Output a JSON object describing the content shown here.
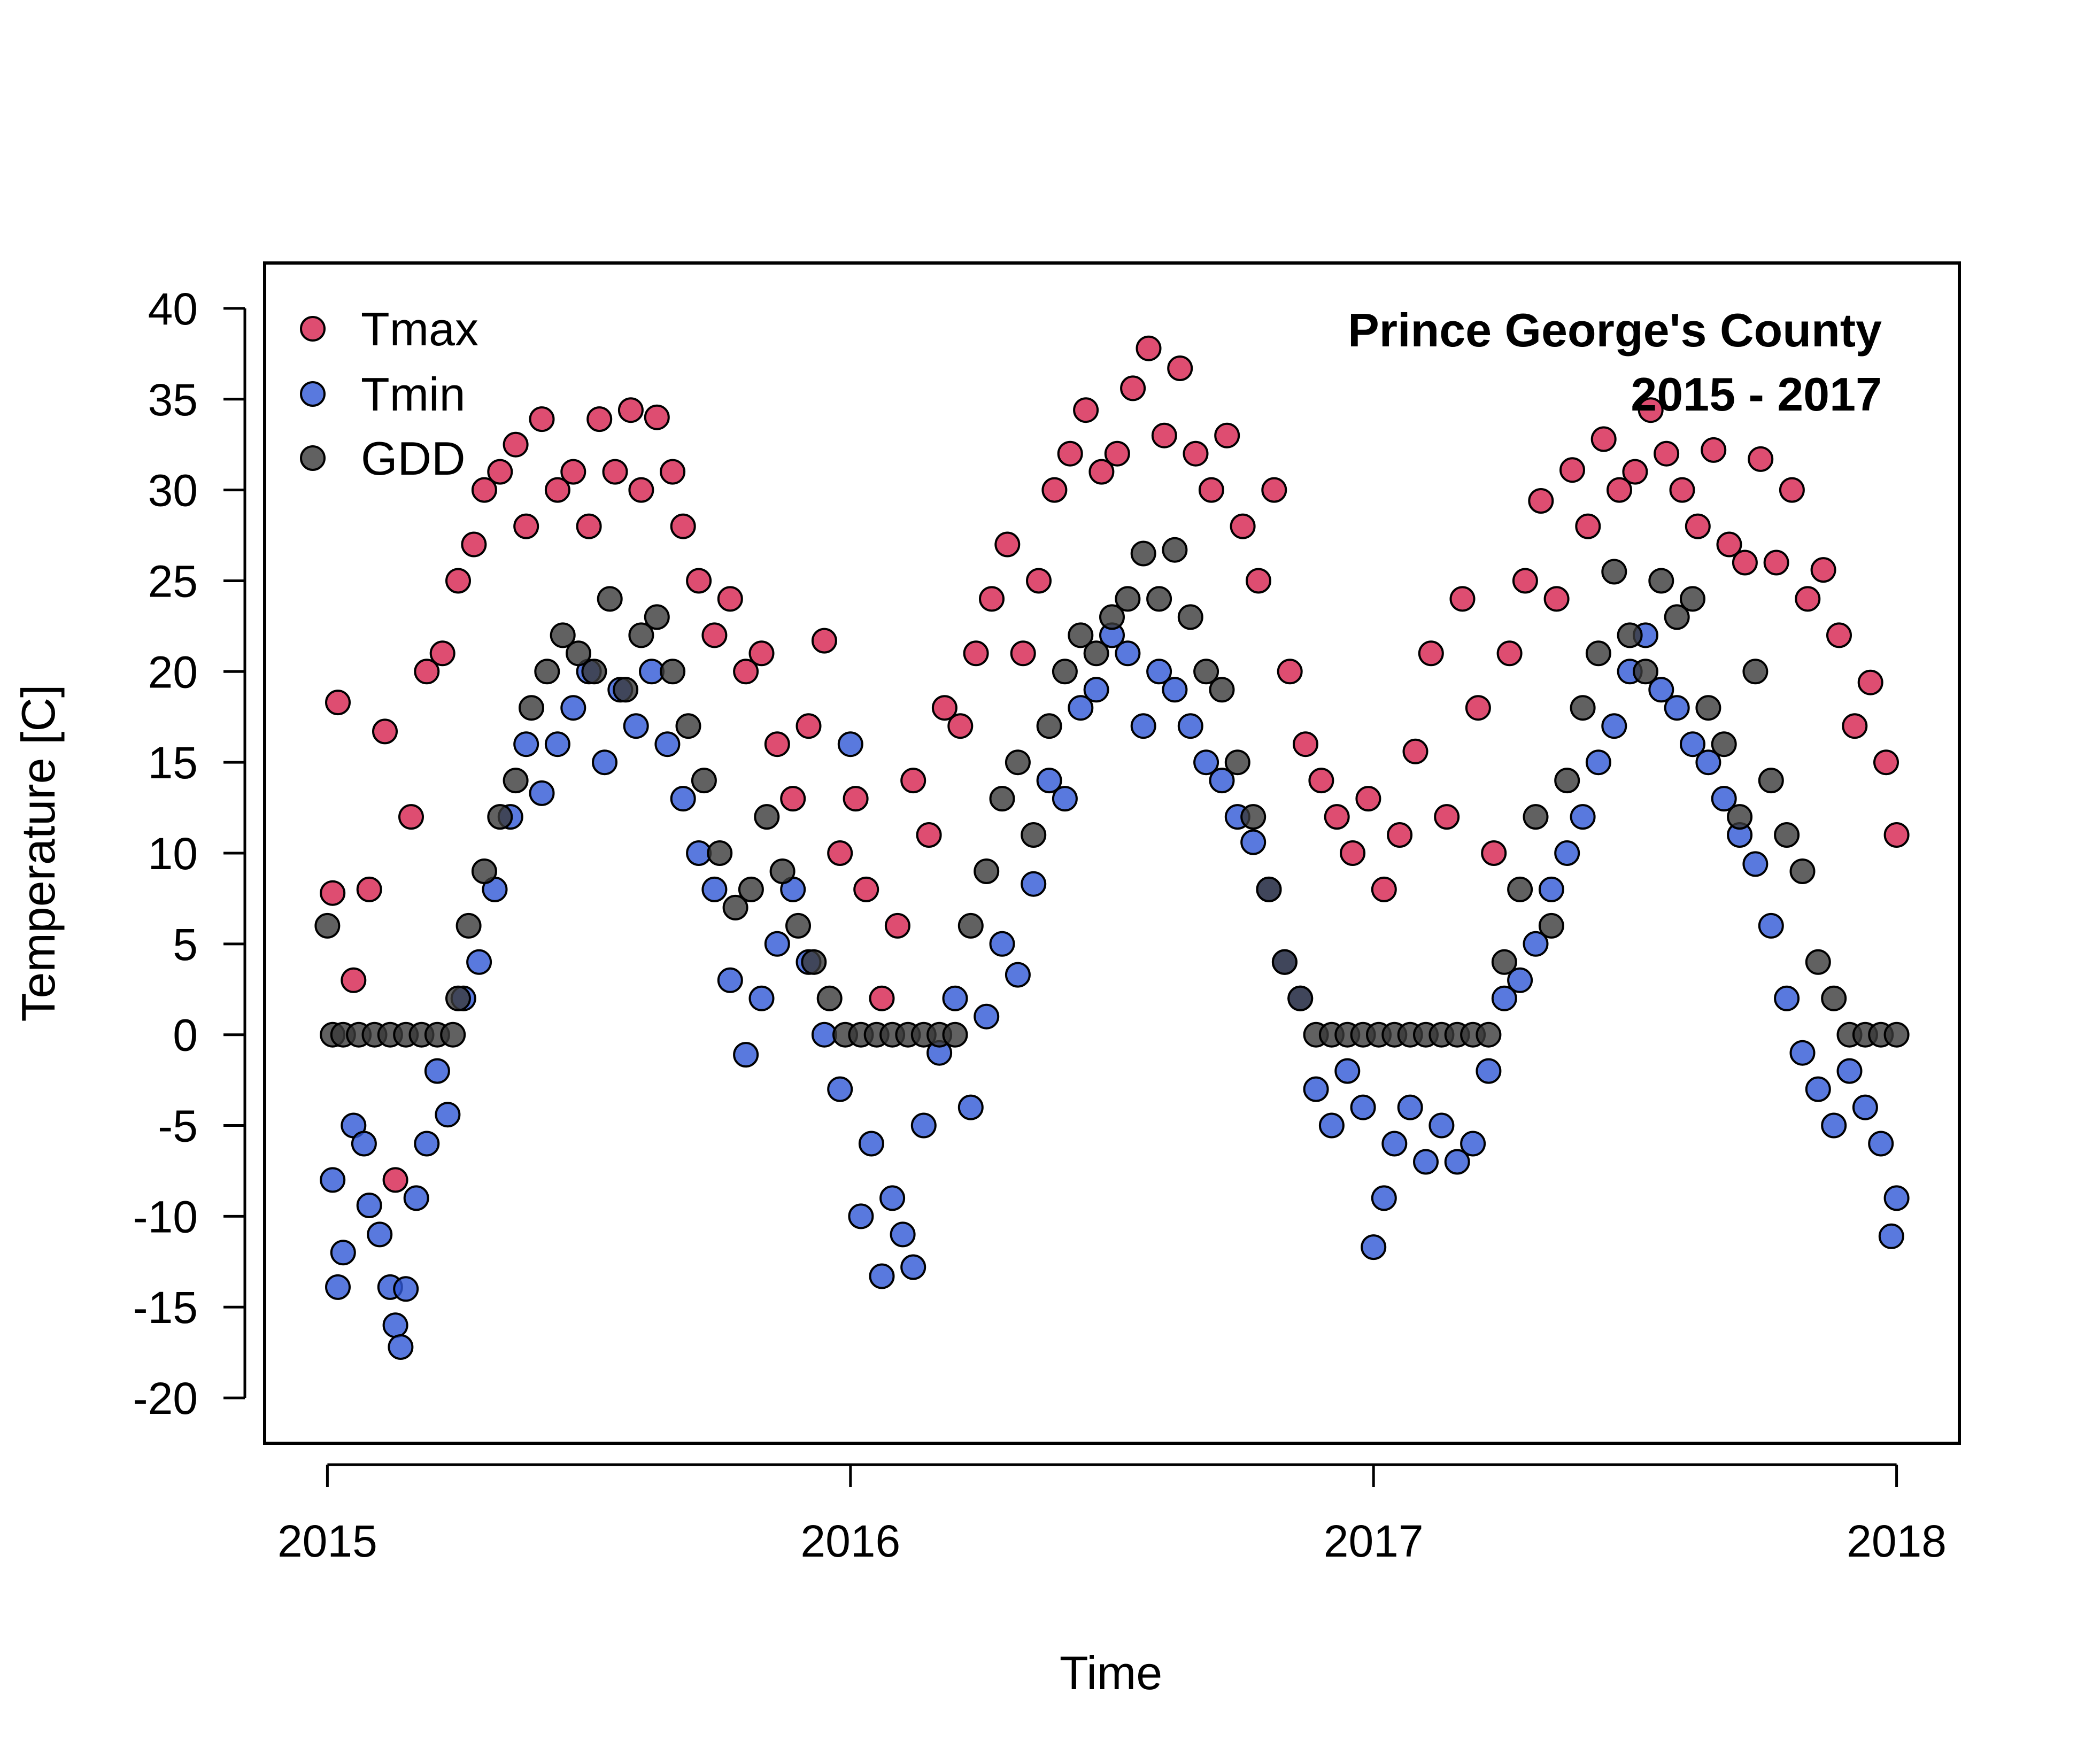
{
  "chart_data": {
    "type": "scatter",
    "title": "",
    "xlabel": "Time",
    "ylabel": "Temperature [C]",
    "xlim": [
      2014.88,
      2018.12
    ],
    "ylim": [
      -22.5,
      42.5
    ],
    "x_ticks": [
      2015,
      2016,
      2017,
      2018
    ],
    "x_tick_labels": [
      "2015",
      "2016",
      "2017",
      "2018"
    ],
    "y_ticks": [
      -20,
      -15,
      -10,
      -5,
      0,
      5,
      10,
      15,
      20,
      25,
      30,
      35,
      40
    ],
    "y_tick_labels": [
      "-20",
      "-15",
      "-10",
      "-5",
      "0",
      "5",
      "10",
      "15",
      "20",
      "25",
      "30",
      "35",
      "40"
    ],
    "grid": false,
    "legend_position": "top-left",
    "annotation": {
      "line1": "Prince George's County",
      "line2": "2015 - 2017",
      "position": "top-right"
    },
    "series": [
      {
        "name": "Tmax",
        "color": "#D6204E",
        "x": [
          2015.01,
          2015.02,
          2015.05,
          2015.08,
          2015.11,
          2015.13,
          2015.16,
          2015.19,
          2015.22,
          2015.25,
          2015.28,
          2015.3,
          2015.33,
          2015.36,
          2015.38,
          2015.41,
          2015.44,
          2015.47,
          2015.5,
          2015.52,
          2015.55,
          2015.58,
          2015.6,
          2015.63,
          2015.66,
          2015.68,
          2015.71,
          2015.74,
          2015.77,
          2015.8,
          2015.83,
          2015.86,
          2015.89,
          2015.92,
          2015.95,
          2015.98,
          2016.01,
          2016.03,
          2016.06,
          2016.09,
          2016.12,
          2016.15,
          2016.18,
          2016.21,
          2016.24,
          2016.27,
          2016.3,
          2016.33,
          2016.36,
          2016.39,
          2016.42,
          2016.45,
          2016.48,
          2016.51,
          2016.54,
          2016.57,
          2016.6,
          2016.63,
          2016.66,
          2016.69,
          2016.72,
          2016.75,
          2016.78,
          2016.81,
          2016.84,
          2016.87,
          2016.9,
          2016.93,
          2016.96,
          2016.99,
          2017.02,
          2017.05,
          2017.08,
          2017.11,
          2017.14,
          2017.17,
          2017.2,
          2017.23,
          2017.26,
          2017.29,
          2017.32,
          2017.35,
          2017.38,
          2017.41,
          2017.44,
          2017.47,
          2017.5,
          2017.53,
          2017.56,
          2017.59,
          2017.62,
          2017.65,
          2017.68,
          2017.71,
          2017.74,
          2017.77,
          2017.8,
          2017.83,
          2017.86,
          2017.89,
          2017.92,
          2017.95,
          2017.98,
          2018.0
        ],
        "y": [
          7.8,
          18.3,
          3.0,
          8.0,
          16.7,
          -8.0,
          12.0,
          20.0,
          21.0,
          25.0,
          27.0,
          30.0,
          31.0,
          32.5,
          28.0,
          33.9,
          30.0,
          31.0,
          28.0,
          33.9,
          31.0,
          34.4,
          30.0,
          34.0,
          31.0,
          28.0,
          25.0,
          22.0,
          24.0,
          20.0,
          21.0,
          16.0,
          13.0,
          17.0,
          21.7,
          10.0,
          13.0,
          8.0,
          2.0,
          6.0,
          14.0,
          11.0,
          18.0,
          17.0,
          21.0,
          24.0,
          27.0,
          21.0,
          25.0,
          30.0,
          32.0,
          34.4,
          31.0,
          32.0,
          35.6,
          37.8,
          33.0,
          36.7,
          32.0,
          30.0,
          33.0,
          28.0,
          25.0,
          30.0,
          20.0,
          16.0,
          14.0,
          12.0,
          10.0,
          13.0,
          8.0,
          11.0,
          15.6,
          21.0,
          12.0,
          24.0,
          18.0,
          10.0,
          21.0,
          25.0,
          29.4,
          24.0,
          31.1,
          28.0,
          32.8,
          30.0,
          31.0,
          34.4,
          32.0,
          30.0,
          28.0,
          32.2,
          27.0,
          26.0,
          31.7,
          26.0,
          30.0,
          24.0,
          25.6,
          22.0,
          17.0,
          19.4,
          15.0,
          11.0
        ]
      },
      {
        "name": "Tmin",
        "color": "#2F57D6",
        "x": [
          2015.01,
          2015.02,
          2015.03,
          2015.05,
          2015.07,
          2015.08,
          2015.1,
          2015.12,
          2015.13,
          2015.14,
          2015.15,
          2015.17,
          2015.19,
          2015.21,
          2015.23,
          2015.26,
          2015.29,
          2015.32,
          2015.35,
          2015.38,
          2015.41,
          2015.44,
          2015.47,
          2015.5,
          2015.53,
          2015.56,
          2015.59,
          2015.62,
          2015.65,
          2015.68,
          2015.71,
          2015.74,
          2015.77,
          2015.8,
          2015.83,
          2015.86,
          2015.89,
          2015.92,
          2015.95,
          2015.98,
          2016.0,
          2016.02,
          2016.04,
          2016.06,
          2016.08,
          2016.1,
          2016.12,
          2016.14,
          2016.17,
          2016.2,
          2016.23,
          2016.26,
          2016.29,
          2016.32,
          2016.35,
          2016.38,
          2016.41,
          2016.44,
          2016.47,
          2016.5,
          2016.53,
          2016.56,
          2016.59,
          2016.62,
          2016.65,
          2016.68,
          2016.71,
          2016.74,
          2016.77,
          2016.8,
          2016.83,
          2016.86,
          2016.89,
          2016.92,
          2016.95,
          2016.98,
          2017.0,
          2017.02,
          2017.04,
          2017.07,
          2017.1,
          2017.13,
          2017.16,
          2017.19,
          2017.22,
          2017.25,
          2017.28,
          2017.31,
          2017.34,
          2017.37,
          2017.4,
          2017.43,
          2017.46,
          2017.49,
          2017.52,
          2017.55,
          2017.58,
          2017.61,
          2017.64,
          2017.67,
          2017.7,
          2017.73,
          2017.76,
          2017.79,
          2017.82,
          2017.85,
          2017.88,
          2017.91,
          2017.94,
          2017.97,
          2017.99,
          2018.0
        ],
        "y": [
          -8.0,
          -13.9,
          -12.0,
          -5.0,
          -6.0,
          -9.4,
          -11.0,
          -13.9,
          -16.0,
          -17.2,
          -14.0,
          -9.0,
          -6.0,
          -2.0,
          -4.4,
          2.0,
          4.0,
          8.0,
          12.0,
          16.0,
          13.3,
          16.0,
          18.0,
          20.0,
          15.0,
          19.0,
          17.0,
          20.0,
          16.0,
          13.0,
          10.0,
          8.0,
          3.0,
          -1.1,
          2.0,
          5.0,
          8.0,
          4.0,
          0.0,
          -3.0,
          16.0,
          -10.0,
          -6.0,
          -13.3,
          -9.0,
          -11.0,
          -12.8,
          -5.0,
          -1.0,
          2.0,
          -4.0,
          1.0,
          5.0,
          3.3,
          8.3,
          14.0,
          13.0,
          18.0,
          19.0,
          22.0,
          21.0,
          17.0,
          20.0,
          19.0,
          17.0,
          15.0,
          14.0,
          12.0,
          10.6,
          8.0,
          4.0,
          2.0,
          -3.0,
          -5.0,
          -2.0,
          -4.0,
          -11.7,
          -9.0,
          -6.0,
          -4.0,
          -7.0,
          -5.0,
          -7.0,
          -6.0,
          -2.0,
          2.0,
          3.0,
          5.0,
          8.0,
          10.0,
          12.0,
          15.0,
          17.0,
          20.0,
          22.0,
          19.0,
          18.0,
          16.0,
          15.0,
          13.0,
          11.0,
          9.4,
          6.0,
          2.0,
          -1.0,
          -3.0,
          -5.0,
          -2.0,
          -4.0,
          -6.0,
          -11.1,
          -9.0
        ]
      },
      {
        "name": "GDD",
        "color": "#3A3A3A",
        "x": [
          2015.0,
          2015.01,
          2015.03,
          2015.06,
          2015.09,
          2015.12,
          2015.15,
          2015.18,
          2015.21,
          2015.24,
          2015.25,
          2015.27,
          2015.3,
          2015.33,
          2015.36,
          2015.39,
          2015.42,
          2015.45,
          2015.48,
          2015.51,
          2015.54,
          2015.57,
          2015.6,
          2015.63,
          2015.66,
          2015.69,
          2015.72,
          2015.75,
          2015.78,
          2015.81,
          2015.84,
          2015.87,
          2015.9,
          2015.93,
          2015.96,
          2015.99,
          2016.02,
          2016.05,
          2016.08,
          2016.11,
          2016.14,
          2016.17,
          2016.2,
          2016.23,
          2016.26,
          2016.29,
          2016.32,
          2016.35,
          2016.38,
          2016.41,
          2016.44,
          2016.47,
          2016.5,
          2016.53,
          2016.56,
          2016.59,
          2016.62,
          2016.65,
          2016.68,
          2016.71,
          2016.74,
          2016.77,
          2016.8,
          2016.83,
          2016.86,
          2016.89,
          2016.92,
          2016.95,
          2016.98,
          2017.01,
          2017.04,
          2017.07,
          2017.1,
          2017.13,
          2017.16,
          2017.19,
          2017.22,
          2017.25,
          2017.28,
          2017.31,
          2017.34,
          2017.37,
          2017.4,
          2017.43,
          2017.46,
          2017.49,
          2017.52,
          2017.55,
          2017.58,
          2017.61,
          2017.64,
          2017.67,
          2017.7,
          2017.73,
          2017.76,
          2017.79,
          2017.82,
          2017.85,
          2017.88,
          2017.91,
          2017.94,
          2017.97,
          2018.0
        ],
        "y": [
          6.0,
          0.0,
          0.0,
          0.0,
          0.0,
          0.0,
          0.0,
          0.0,
          0.0,
          0.0,
          2.0,
          6.0,
          9.0,
          12.0,
          14.0,
          18.0,
          20.0,
          22.0,
          21.0,
          20.0,
          24.0,
          19.0,
          22.0,
          23.0,
          20.0,
          17.0,
          14.0,
          10.0,
          7.0,
          8.0,
          12.0,
          9.0,
          6.0,
          4.0,
          2.0,
          0.0,
          0.0,
          0.0,
          0.0,
          0.0,
          0.0,
          0.0,
          0.0,
          6.0,
          9.0,
          13.0,
          15.0,
          11.0,
          17.0,
          20.0,
          22.0,
          21.0,
          23.0,
          24.0,
          26.5,
          24.0,
          26.7,
          23.0,
          20.0,
          19.0,
          15.0,
          12.0,
          8.0,
          4.0,
          2.0,
          0.0,
          0.0,
          0.0,
          0.0,
          0.0,
          0.0,
          0.0,
          0.0,
          0.0,
          0.0,
          0.0,
          0.0,
          4.0,
          8.0,
          12.0,
          6.0,
          14.0,
          18.0,
          21.0,
          25.5,
          22.0,
          20.0,
          25.0,
          23.0,
          24.0,
          18.0,
          16.0,
          12.0,
          20.0,
          14.0,
          11.0,
          9.0,
          4.0,
          2.0,
          0.0,
          0.0,
          0.0,
          0.0
        ]
      }
    ]
  }
}
